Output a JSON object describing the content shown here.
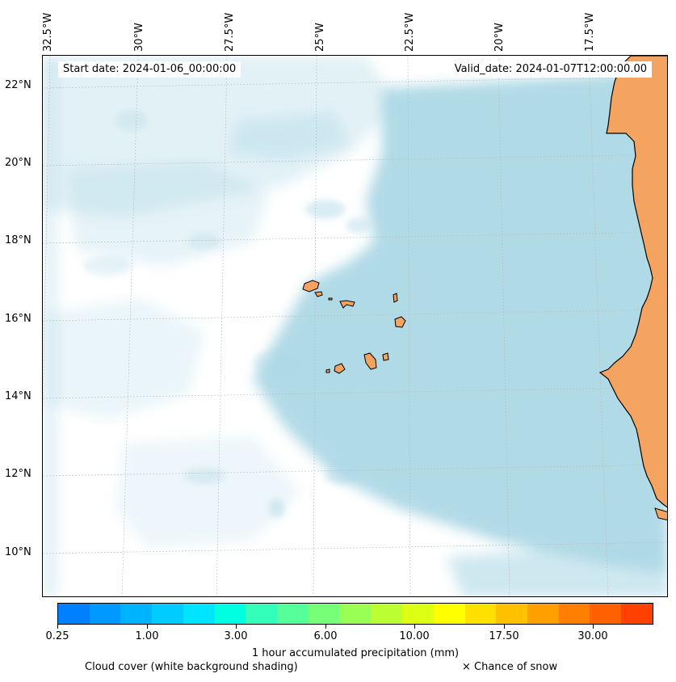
{
  "map": {
    "start_date": "Start date: 2024-01-06_00:00:00",
    "valid_date": "Valid_date: 2024-01-07T12:00:00.00",
    "lon_labels": [
      "32.5°W",
      "30°W",
      "27.5°W",
      "25°W",
      "22.5°W",
      "20°W",
      "17.5°W"
    ],
    "lat_labels": [
      "22°N",
      "20°N",
      "18°N",
      "16°N",
      "14°N",
      "12°N",
      "10°N"
    ],
    "colors": {
      "cloud": "#add8e6",
      "land": "#f4a460",
      "coast": "#000000"
    }
  },
  "colorbar": {
    "colors": [
      "#0080ff",
      "#0099ff",
      "#00b3ff",
      "#00ccff",
      "#00e5ff",
      "#00ffe0",
      "#33ffbb",
      "#55ff99",
      "#77ff77",
      "#99ff55",
      "#bbff33",
      "#ddff11",
      "#ffff00",
      "#ffe000",
      "#ffc000",
      "#ffa000",
      "#ff8000",
      "#ff6000",
      "#ff4000"
    ],
    "tick_labels": [
      "0.25",
      "1.00",
      "3.00",
      "6.00",
      "10.00",
      "17.50",
      "30.00"
    ],
    "title": "1 hour accumulated precipitation (mm)"
  },
  "legend": {
    "cloud_label": "Cloud cover (white background shading)",
    "snow_label": "× Chance of snow"
  }
}
